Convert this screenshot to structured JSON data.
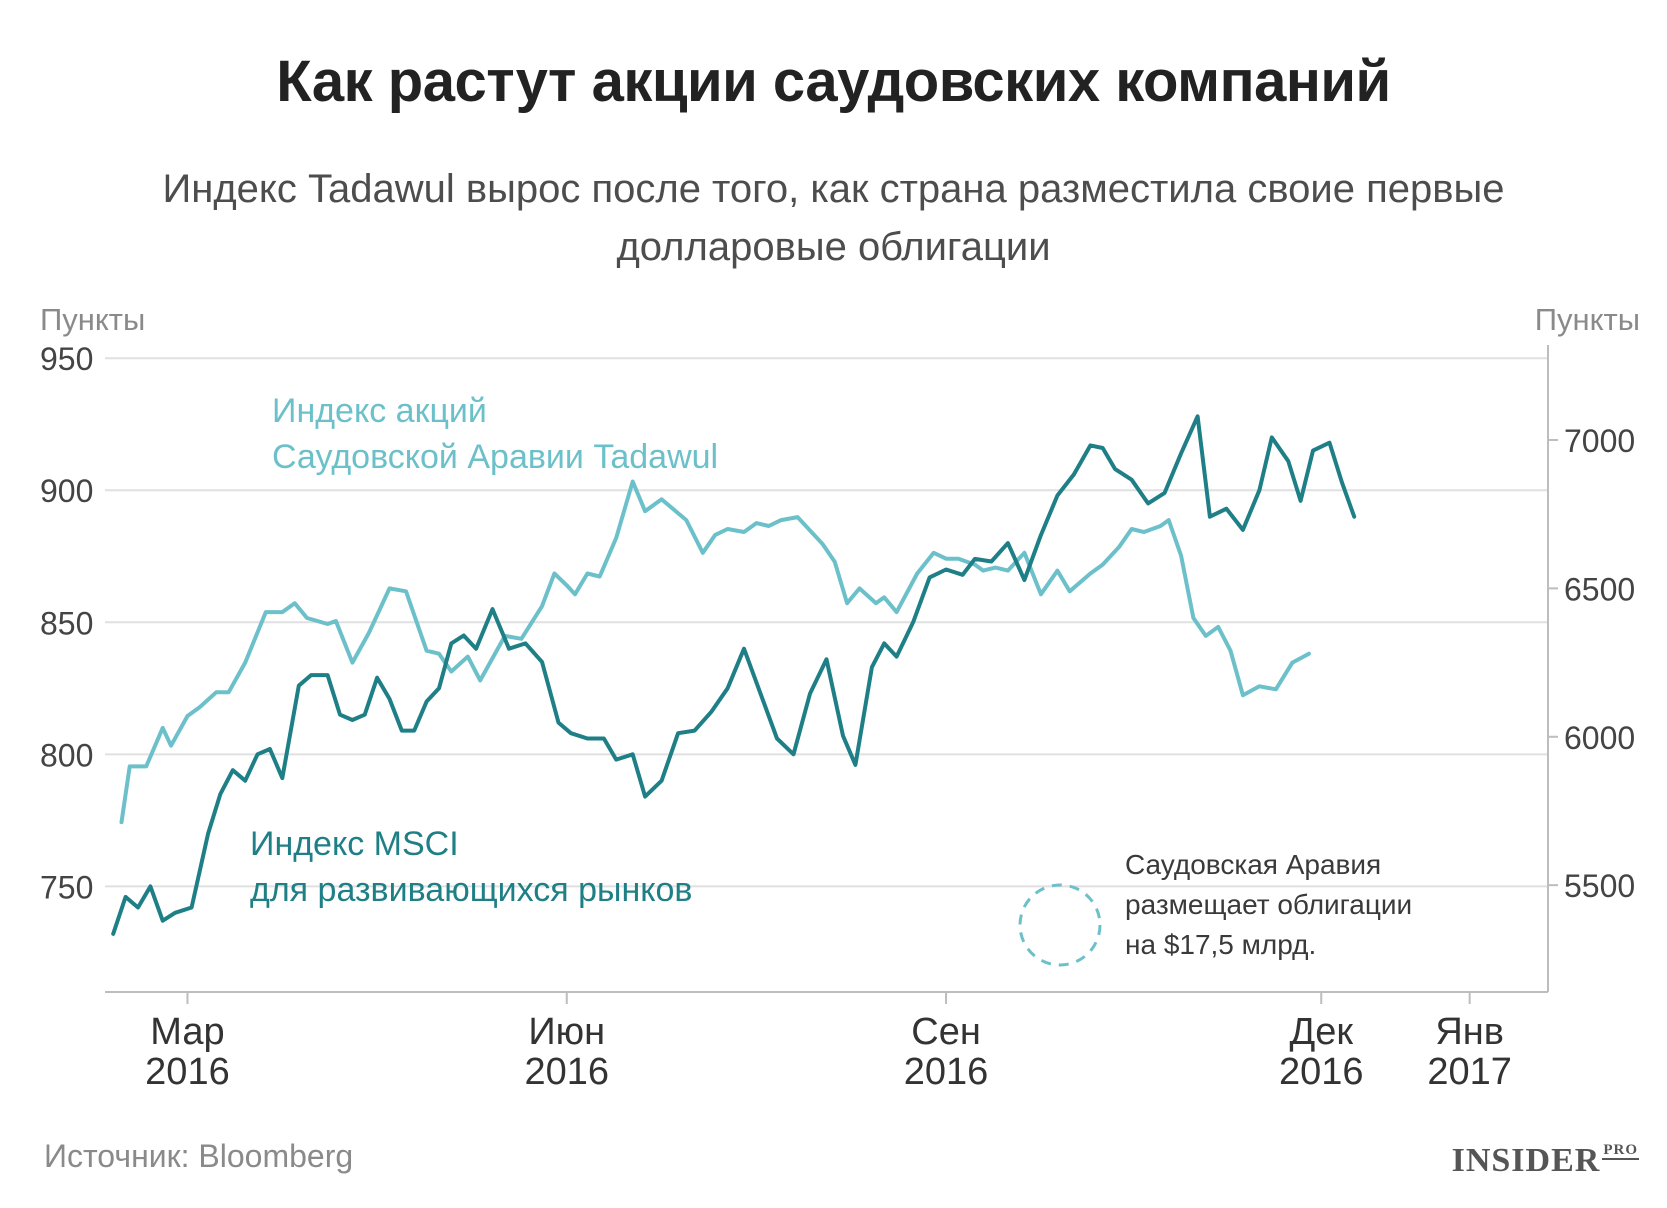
{
  "title": "Как растут акции саудовских компаний",
  "subtitle": "Индекс Tadawul вырос после того, как страна разместила своие первые долларовые облигации",
  "source": "Источник: Bloomberg",
  "logo": {
    "main": "INSIDER",
    "suffix": "PRO"
  },
  "chart_data": {
    "type": "line",
    "left_axis": {
      "title": "Пункты",
      "min": 710,
      "max": 955,
      "ticks": [
        750,
        800,
        850,
        900,
        950
      ]
    },
    "right_axis": {
      "title": "Пункты",
      "min": 5140,
      "max": 7320,
      "ticks": [
        5500,
        6000,
        6500,
        7000
      ]
    },
    "x_range": [
      "2016-02-10",
      "2017-01-25"
    ],
    "x_ticks": [
      {
        "date": "2016-03-01",
        "month": "Мар",
        "year": "2016"
      },
      {
        "date": "2016-06-01",
        "month": "Июн",
        "year": "2016"
      },
      {
        "date": "2016-09-01",
        "month": "Сен",
        "year": "2016"
      },
      {
        "date": "2016-12-01",
        "month": "Дек",
        "year": "2016"
      },
      {
        "date": "2017-01-06",
        "month": "Янв",
        "year": "2017"
      }
    ],
    "series": [
      {
        "name": "Индекс акций Саудовской Аравии Tadawul",
        "label_lines": [
          "Индекс акций",
          "Саудовской Аравии Tadawul"
        ],
        "axis": "right",
        "color": "#6cc0ca",
        "points": [
          [
            "2016-02-14",
            5712
          ],
          [
            "2016-02-16",
            5900
          ],
          [
            "2016-02-20",
            5900
          ],
          [
            "2016-02-24",
            6030
          ],
          [
            "2016-02-26",
            5970
          ],
          [
            "2016-03-01",
            6070
          ],
          [
            "2016-03-04",
            6100
          ],
          [
            "2016-03-08",
            6150
          ],
          [
            "2016-03-11",
            6150
          ],
          [
            "2016-03-15",
            6250
          ],
          [
            "2016-03-20",
            6420
          ],
          [
            "2016-03-24",
            6420
          ],
          [
            "2016-03-27",
            6450
          ],
          [
            "2016-03-30",
            6400
          ],
          [
            "2016-04-04",
            6380
          ],
          [
            "2016-04-06",
            6390
          ],
          [
            "2016-04-10",
            6250
          ],
          [
            "2016-04-14",
            6350
          ],
          [
            "2016-04-19",
            6500
          ],
          [
            "2016-04-23",
            6490
          ],
          [
            "2016-04-28",
            6290
          ],
          [
            "2016-05-01",
            6280
          ],
          [
            "2016-05-04",
            6220
          ],
          [
            "2016-05-08",
            6270
          ],
          [
            "2016-05-11",
            6190
          ],
          [
            "2016-05-17",
            6340
          ],
          [
            "2016-05-21",
            6330
          ],
          [
            "2016-05-26",
            6440
          ],
          [
            "2016-05-29",
            6550
          ],
          [
            "2016-06-01",
            6510
          ],
          [
            "2016-06-03",
            6480
          ],
          [
            "2016-06-06",
            6550
          ],
          [
            "2016-06-09",
            6540
          ],
          [
            "2016-06-13",
            6670
          ],
          [
            "2016-06-17",
            6860
          ],
          [
            "2016-06-20",
            6760
          ],
          [
            "2016-06-24",
            6800
          ],
          [
            "2016-06-30",
            6730
          ],
          [
            "2016-07-04",
            6620
          ],
          [
            "2016-07-07",
            6680
          ],
          [
            "2016-07-10",
            6700
          ],
          [
            "2016-07-14",
            6690
          ],
          [
            "2016-07-17",
            6720
          ],
          [
            "2016-07-20",
            6710
          ],
          [
            "2016-07-23",
            6730
          ],
          [
            "2016-07-27",
            6740
          ],
          [
            "2016-08-02",
            6650
          ],
          [
            "2016-08-05",
            6590
          ],
          [
            "2016-08-08",
            6450
          ],
          [
            "2016-08-11",
            6500
          ],
          [
            "2016-08-15",
            6450
          ],
          [
            "2016-08-17",
            6470
          ],
          [
            "2016-08-20",
            6420
          ],
          [
            "2016-08-25",
            6550
          ],
          [
            "2016-08-29",
            6620
          ],
          [
            "2016-09-01",
            6600
          ],
          [
            "2016-09-04",
            6600
          ],
          [
            "2016-09-08",
            6580
          ],
          [
            "2016-09-10",
            6560
          ],
          [
            "2016-09-13",
            6570
          ],
          [
            "2016-09-16",
            6560
          ],
          [
            "2016-09-20",
            6620
          ],
          [
            "2016-09-24",
            6480
          ],
          [
            "2016-09-28",
            6560
          ],
          [
            "2016-10-01",
            6490
          ],
          [
            "2016-10-06",
            6550
          ],
          [
            "2016-10-09",
            6580
          ],
          [
            "2016-10-13",
            6640
          ],
          [
            "2016-10-16",
            6700
          ],
          [
            "2016-10-19",
            6690
          ],
          [
            "2016-10-23",
            6710
          ],
          [
            "2016-10-25",
            6730
          ],
          [
            "2016-10-28",
            6610
          ],
          [
            "2016-10-31",
            6400
          ],
          [
            "2016-11-03",
            6340
          ],
          [
            "2016-11-06",
            6370
          ],
          [
            "2016-11-09",
            6290
          ],
          [
            "2016-11-12",
            6140
          ],
          [
            "2016-11-16",
            6170
          ],
          [
            "2016-11-20",
            6160
          ],
          [
            "2016-11-24",
            6250
          ],
          [
            "2016-11-28",
            6280
          ]
        ]
      },
      {
        "name": "Индекс MSCI для развивающихся рынков",
        "label_lines": [
          "Индекс MSCI",
          "для развивающихся рынков"
        ],
        "axis": "left",
        "color": "#1f7f86",
        "points": [
          [
            "2016-02-12",
            732
          ],
          [
            "2016-02-15",
            746
          ],
          [
            "2016-02-18",
            742
          ],
          [
            "2016-02-21",
            750
          ],
          [
            "2016-02-24",
            737
          ],
          [
            "2016-02-27",
            740
          ],
          [
            "2016-03-02",
            742
          ],
          [
            "2016-03-06",
            770
          ],
          [
            "2016-03-09",
            785
          ],
          [
            "2016-03-12",
            794
          ],
          [
            "2016-03-15",
            790
          ],
          [
            "2016-03-18",
            800
          ],
          [
            "2016-03-21",
            802
          ],
          [
            "2016-03-24",
            791
          ],
          [
            "2016-03-28",
            826
          ],
          [
            "2016-03-31",
            830
          ],
          [
            "2016-04-04",
            830
          ],
          [
            "2016-04-07",
            815
          ],
          [
            "2016-04-10",
            813
          ],
          [
            "2016-04-13",
            815
          ],
          [
            "2016-04-16",
            829
          ],
          [
            "2016-04-19",
            821
          ],
          [
            "2016-04-22",
            809
          ],
          [
            "2016-04-25",
            809
          ],
          [
            "2016-04-28",
            820
          ],
          [
            "2016-05-01",
            825
          ],
          [
            "2016-05-04",
            842
          ],
          [
            "2016-05-07",
            845
          ],
          [
            "2016-05-10",
            840
          ],
          [
            "2016-05-14",
            855
          ],
          [
            "2016-05-18",
            840
          ],
          [
            "2016-05-22",
            842
          ],
          [
            "2016-05-26",
            835
          ],
          [
            "2016-05-30",
            812
          ],
          [
            "2016-06-02",
            808
          ],
          [
            "2016-06-06",
            806
          ],
          [
            "2016-06-10",
            806
          ],
          [
            "2016-06-13",
            798
          ],
          [
            "2016-06-17",
            800
          ],
          [
            "2016-06-20",
            784
          ],
          [
            "2016-06-24",
            790
          ],
          [
            "2016-06-28",
            808
          ],
          [
            "2016-07-02",
            809
          ],
          [
            "2016-07-06",
            816
          ],
          [
            "2016-07-10",
            825
          ],
          [
            "2016-07-14",
            840
          ],
          [
            "2016-07-18",
            823
          ],
          [
            "2016-07-22",
            806
          ],
          [
            "2016-07-26",
            800
          ],
          [
            "2016-07-30",
            823
          ],
          [
            "2016-08-03",
            836
          ],
          [
            "2016-08-07",
            807
          ],
          [
            "2016-08-10",
            796
          ],
          [
            "2016-08-14",
            833
          ],
          [
            "2016-08-17",
            842
          ],
          [
            "2016-08-20",
            837
          ],
          [
            "2016-08-24",
            850
          ],
          [
            "2016-08-28",
            867
          ],
          [
            "2016-09-01",
            870
          ],
          [
            "2016-09-05",
            868
          ],
          [
            "2016-09-08",
            874
          ],
          [
            "2016-09-12",
            873
          ],
          [
            "2016-09-16",
            880
          ],
          [
            "2016-09-20",
            866
          ],
          [
            "2016-09-24",
            883
          ],
          [
            "2016-09-28",
            898
          ],
          [
            "2016-10-02",
            906
          ],
          [
            "2016-10-06",
            917
          ],
          [
            "2016-10-09",
            916
          ],
          [
            "2016-10-12",
            908
          ],
          [
            "2016-10-16",
            904
          ],
          [
            "2016-10-20",
            895
          ],
          [
            "2016-10-24",
            899
          ],
          [
            "2016-10-28",
            914
          ],
          [
            "2016-11-01",
            928
          ],
          [
            "2016-11-04",
            890
          ],
          [
            "2016-11-08",
            893
          ],
          [
            "2016-11-12",
            885
          ],
          [
            "2016-11-16",
            900
          ],
          [
            "2016-11-19",
            920
          ],
          [
            "2016-11-23",
            911
          ],
          [
            "2016-11-26",
            896
          ],
          [
            "2016-11-29",
            915
          ],
          [
            "2016-12-03",
            918
          ],
          [
            "2016-12-06",
            903
          ],
          [
            "2016-12-09",
            890
          ]
        ]
      }
    ],
    "annotation": {
      "lines": [
        "Саудовская Аравия",
        "размещает облигации",
        "на $17,5 млрд."
      ]
    }
  }
}
